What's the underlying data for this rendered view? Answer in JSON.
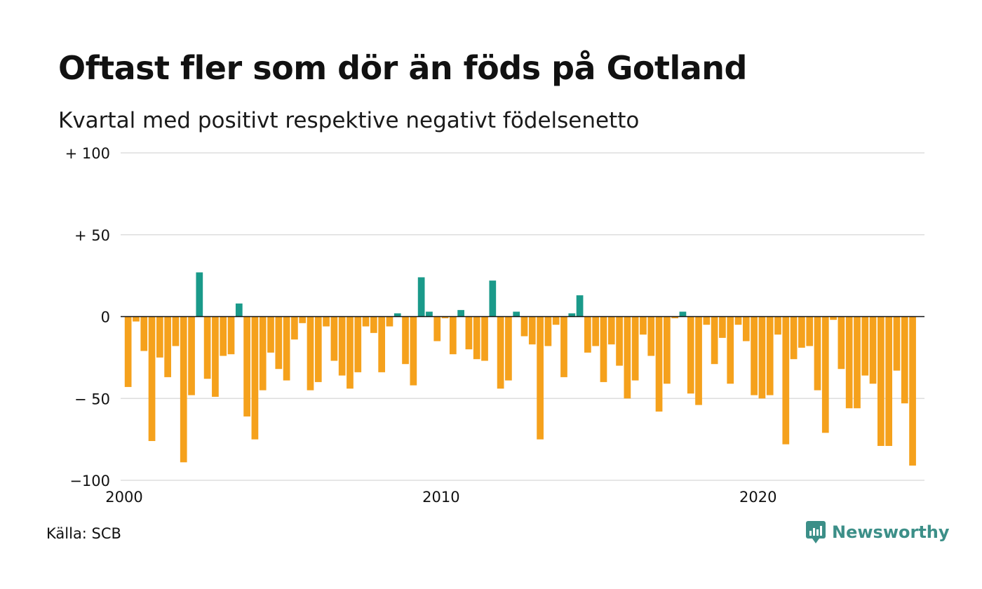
{
  "title": "Oftast fler som dör än föds på Gotland",
  "subtitle": "Kvartal med positivt respektive negativt födelsenetto",
  "source": "Källa: SCB",
  "brand": {
    "name": "Newsworthy",
    "icon": "newsworthy-logo-icon"
  },
  "colors": {
    "positive": "#1a9a8a",
    "negative": "#f5a11c",
    "grid": "#dddddd",
    "zero": "#111111",
    "brand": "#3c8f88"
  },
  "chart_data": {
    "type": "bar",
    "y_ticks": [
      {
        "value": 100,
        "label": "+ 100"
      },
      {
        "value": 50,
        "label": "+  50"
      },
      {
        "value": 0,
        "label": "0"
      },
      {
        "value": -50,
        "label": "− 50"
      },
      {
        "value": -100,
        "label": "−100"
      }
    ],
    "x_ticks": [
      {
        "value": 2000,
        "label": "2000"
      },
      {
        "value": 2010,
        "label": "2010"
      },
      {
        "value": 2020,
        "label": "2020"
      }
    ],
    "ylim": [
      -100,
      100
    ],
    "xlim": [
      2000,
      2025.25
    ],
    "period": "quarter",
    "start": "2000Q1",
    "grid": true,
    "values": [
      -43,
      -3,
      -21,
      -76,
      -25,
      -37,
      -18,
      -89,
      -48,
      27,
      -38,
      -49,
      -24,
      -23,
      8,
      -61,
      -75,
      -45,
      -22,
      -32,
      -39,
      -14,
      -4,
      -45,
      -40,
      -6,
      -27,
      -36,
      -44,
      -34,
      -6,
      -10,
      -34,
      -6,
      2,
      -29,
      -42,
      24,
      3,
      -15,
      -1,
      -23,
      4,
      -20,
      -26,
      -27,
      22,
      -44,
      -39,
      3,
      -12,
      -17,
      -75,
      -18,
      -5,
      -37,
      2,
      13,
      -22,
      -18,
      -40,
      -17,
      -30,
      -50,
      -39,
      -11,
      -24,
      -58,
      -41,
      -1,
      3,
      -47,
      -54,
      -5,
      -29,
      -13,
      -41,
      -5,
      -15,
      -48,
      -50,
      -48,
      -11,
      -78,
      -26,
      -19,
      -18,
      -45,
      -71,
      -2,
      -32,
      -56,
      -56,
      -36,
      -41,
      -79,
      -79,
      -33,
      -53,
      -91
    ]
  }
}
